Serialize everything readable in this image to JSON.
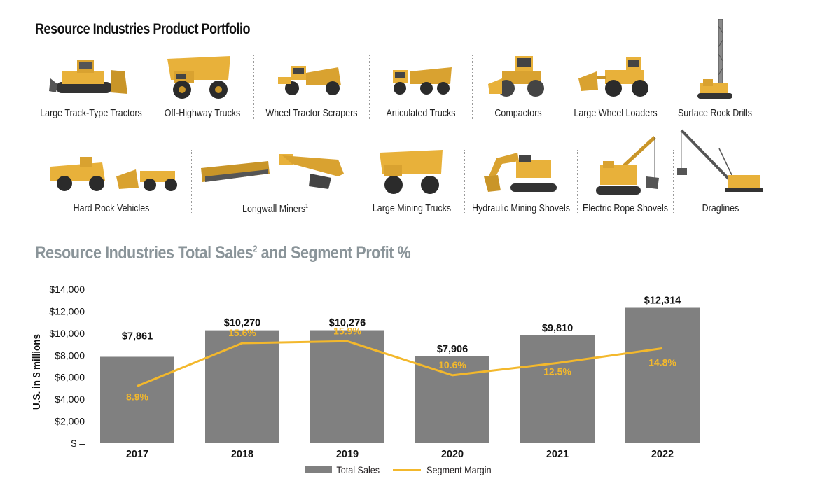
{
  "portfolio": {
    "title": "Resource Industries Product Portfolio",
    "row1": [
      {
        "label": "Large Track-Type Tractors",
        "icon": "track-type-tractor-icon"
      },
      {
        "label": "Off-Highway Trucks",
        "icon": "off-highway-truck-icon"
      },
      {
        "label": "Wheel Tractor Scrapers",
        "icon": "wheel-tractor-scraper-icon"
      },
      {
        "label": "Articulated Trucks",
        "icon": "articulated-truck-icon"
      },
      {
        "label": "Compactors",
        "icon": "compactor-icon"
      },
      {
        "label": "Large Wheel Loaders",
        "icon": "wheel-loader-icon"
      },
      {
        "label": "Surface Rock Drills",
        "icon": "rock-drill-icon"
      }
    ],
    "row2": [
      {
        "label": "Hard Rock Vehicles",
        "icon": "hard-rock-vehicle-icon"
      },
      {
        "label": "Longwall Miners",
        "footnote": "1",
        "icon": "longwall-miner-icon"
      },
      {
        "label": "Large Mining Trucks",
        "icon": "mining-truck-icon"
      },
      {
        "label": "Hydraulic Mining Shovels",
        "icon": "hydraulic-shovel-icon"
      },
      {
        "label": "Electric Rope Shovels",
        "icon": "rope-shovel-icon"
      },
      {
        "label": "Draglines",
        "icon": "dragline-icon"
      }
    ]
  },
  "colors": {
    "bar": "#808080",
    "line": "#f3b82c",
    "machine": "#e8b13a",
    "title_gray": "#8a9499"
  },
  "chart_data": {
    "type": "bar",
    "title": "Resource Industries Total Sales",
    "title_footnote": "2",
    "title_suffix": " and Segment Profit %",
    "ylabel": "U.S. in $ millions",
    "ylim": [
      0,
      14000
    ],
    "yticks": [
      "$14,000",
      "$12,000",
      "$10,000",
      "$8,000",
      "$6,000",
      "$4,000",
      "$2,000",
      "$ –"
    ],
    "categories": [
      "2017",
      "2018",
      "2019",
      "2020",
      "2021",
      "2022"
    ],
    "series": [
      {
        "name": "Total Sales",
        "type": "bar",
        "values": [
          7861,
          10270,
          10276,
          7906,
          9810,
          12314
        ],
        "labels": [
          "$7,861",
          "$10,270",
          "$10,276",
          "$7,906",
          "$9,810",
          "$12,314"
        ]
      },
      {
        "name": "Segment Margin",
        "type": "line",
        "values": [
          8.9,
          15.6,
          15.9,
          10.6,
          12.5,
          14.8
        ],
        "labels": [
          "8.9%",
          "15.6%",
          "15.9%",
          "10.6%",
          "12.5%",
          "14.8%"
        ]
      }
    ],
    "legend_position": "bottom"
  }
}
